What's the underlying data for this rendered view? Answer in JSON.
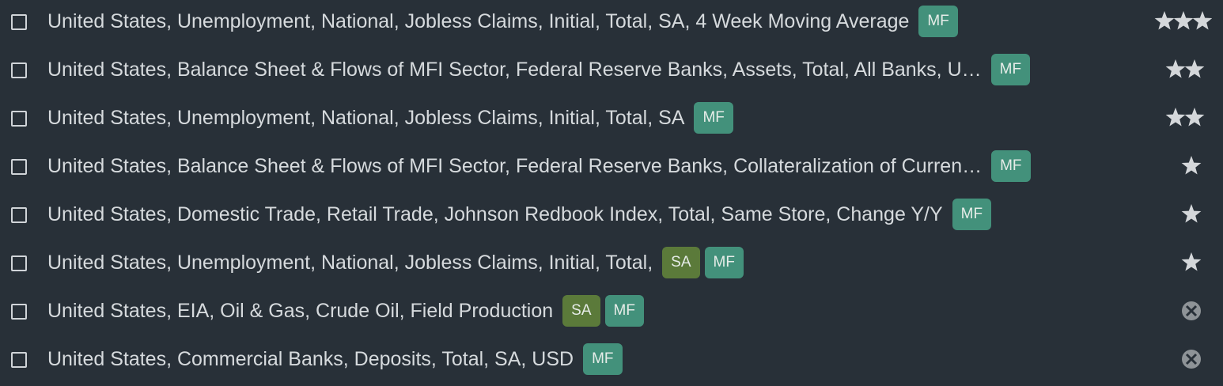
{
  "rows": [
    {
      "label": "United States, Unemployment, National, Jobless Claims, Initial, Total, SA, 4 Week Moving Average",
      "badges": [
        "MF"
      ],
      "stars": 3
    },
    {
      "label": "United States, Balance Sheet & Flows of MFI Sector, Federal Reserve Banks, Assets, Total, All Banks, U…",
      "badges": [
        "MF"
      ],
      "stars": 2
    },
    {
      "label": "United States, Unemployment, National, Jobless Claims, Initial, Total, SA",
      "badges": [
        "MF"
      ],
      "stars": 2
    },
    {
      "label": "United States, Balance Sheet & Flows of MFI Sector, Federal Reserve Banks, Collateralization of Curren…",
      "badges": [
        "MF"
      ],
      "stars": 1
    },
    {
      "label": "United States, Domestic Trade, Retail Trade, Johnson Redbook Index, Total, Same Store, Change Y/Y",
      "badges": [
        "MF"
      ],
      "stars": 1
    },
    {
      "label": "United States, Unemployment, National, Jobless Claims, Initial, Total,",
      "badges": [
        "SA",
        "MF"
      ],
      "stars": 1
    },
    {
      "label": "United States, EIA, Oil & Gas, Crude Oil, Field Production",
      "badges": [
        "SA",
        "MF"
      ]
    },
    {
      "label": "United States, Commercial Banks, Deposits, Total, SA, USD",
      "badges": [
        "MF"
      ]
    }
  ]
}
